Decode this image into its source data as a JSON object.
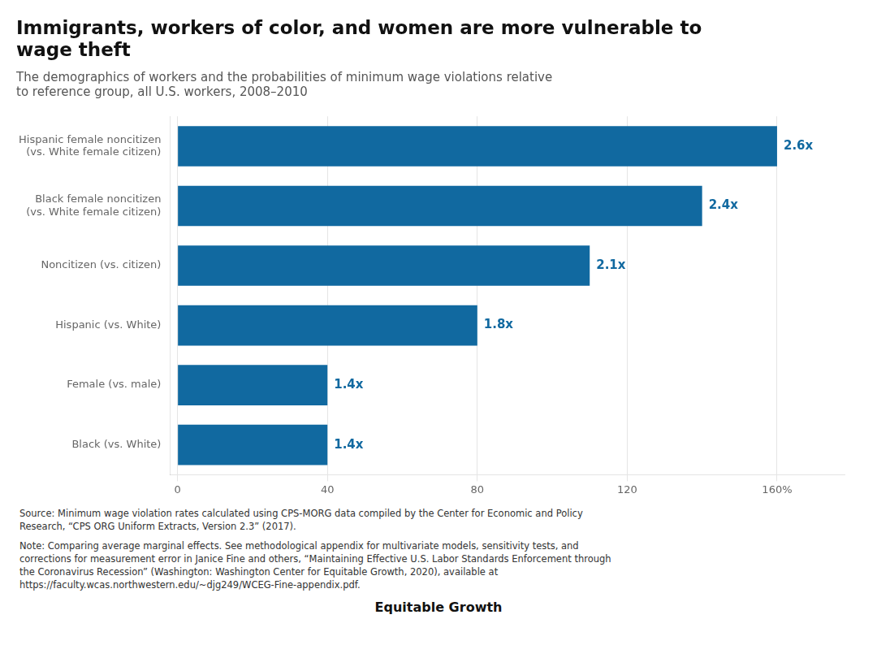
{
  "chart_data": {
    "type": "bar",
    "orientation": "horizontal",
    "title": "Immigrants, workers of color, and women are more vulnerable to\nwage theft",
    "subtitle": "The demographics of workers and the probabilities of minimum wage violations relative\nto reference group, all U.S. workers, 2008–2010",
    "categories": [
      "Black (vs. White)",
      "Female (vs. male)",
      "Hispanic (vs. White)",
      "Noncitizen (vs. citizen)",
      "Black female noncitizen\n(vs. White female citizen)",
      "Hispanic female noncitizen\n(vs. White female citizen)"
    ],
    "values": [
      40,
      40,
      80,
      110,
      140,
      160
    ],
    "value_labels": [
      "1.4x",
      "1.4x",
      "1.8x",
      "2.1x",
      "2.4x",
      "2.6x"
    ],
    "data_labels": true,
    "color": "#1169a0",
    "xlim": [
      -2,
      178
    ],
    "xticks": [
      0,
      40,
      80,
      120,
      {
        "value": 160,
        "label": "160%"
      }
    ],
    "grid": true,
    "source": "Source: Minimum wage violation rates calculated using CPS-MORG data compiled by the Center for Economic and Policy\nResearch, “CPS ORG Uniform Extracts, Version 2.3” (2017).",
    "note": "Note: Comparing average marginal effects. See methodological appendix for multivariate models, sensitivity tests, and\ncorrections for measurement error in Janice Fine and others, “Maintaining Effective U.S. Labor Standards Enforcement through\nthe Coronavirus Recession” (Washington: Washington Center for Equitable Growth, 2020), available at\nhttps://faculty.wcas.northwestern.edu/~djg249/WCEG-Fine-appendix.pdf.",
    "logo_text": "Equitable Growth"
  }
}
